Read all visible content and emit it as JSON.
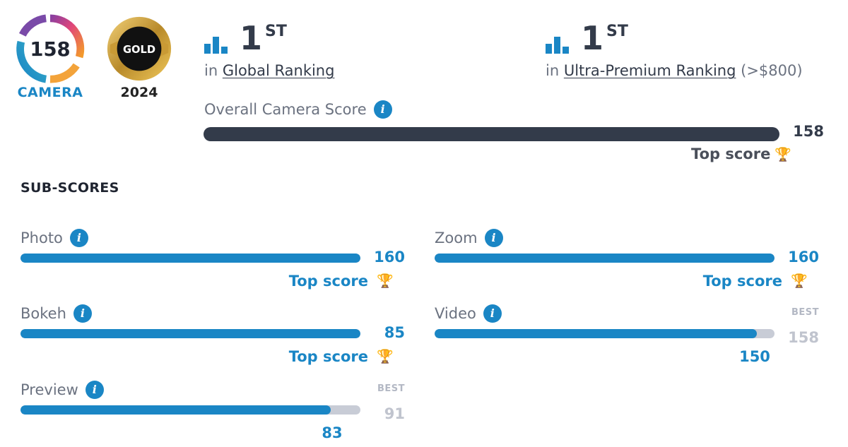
{
  "badge": {
    "score": "158",
    "category": "CAMERA",
    "award_label": "GOLD",
    "award_year": "2024"
  },
  "rankings": [
    {
      "position": "1",
      "suffix": "ST",
      "prefix": "in",
      "link": "Global Ranking",
      "extra": ""
    },
    {
      "position": "1",
      "suffix": "ST",
      "prefix": "in",
      "link": "Ultra-Premium Ranking",
      "extra": "(>$800)"
    }
  ],
  "overall": {
    "label": "Overall Camera Score",
    "value": "158",
    "fraction": 1.0,
    "top_label": "Top score"
  },
  "subscores_title": "SUB-SCORES",
  "info_glyph": "i",
  "best_tag": "BEST",
  "subscores": [
    {
      "name": "Photo",
      "value": "160",
      "best": "160",
      "is_top": true,
      "top_label": "Top score"
    },
    {
      "name": "Zoom",
      "value": "160",
      "best": "160",
      "is_top": true,
      "top_label": "Top score"
    },
    {
      "name": "Bokeh",
      "value": "85",
      "best": "85",
      "is_top": true,
      "top_label": "Top score"
    },
    {
      "name": "Video",
      "value": "150",
      "best": "158",
      "is_top": false,
      "top_label": ""
    },
    {
      "name": "Preview",
      "value": "83",
      "best": "91",
      "is_top": false,
      "top_label": ""
    }
  ],
  "colors": {
    "accent": "#1a86c5",
    "dark": "#333b4a",
    "track": "#c8ccd6",
    "gold": "#e0a820"
  },
  "icons": {
    "ranking": "bar-chart-icon",
    "info": "info-icon",
    "trophy": "trophy-icon"
  }
}
